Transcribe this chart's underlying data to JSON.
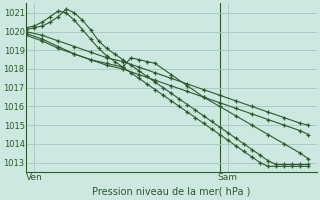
{
  "background_color": "#cce8e0",
  "grid_color": "#aaccc4",
  "line_color": "#2d5a2d",
  "ylim": [
    1012.5,
    1021.5
  ],
  "yticks": [
    1013,
    1014,
    1015,
    1016,
    1017,
    1018,
    1019,
    1020,
    1021
  ],
  "xlabel": "Pression niveau de la mer( hPa )",
  "ven_label": "Ven",
  "sam_label": "Sam",
  "xlim": [
    0,
    36
  ],
  "ven_x": 1,
  "sam_x": 25,
  "sam_line_x": 24,
  "series": [
    {
      "x": [
        0,
        1,
        2,
        3,
        4,
        5,
        6,
        7,
        8,
        9,
        10,
        11,
        12,
        13,
        14,
        15,
        16,
        17,
        18,
        19,
        20,
        21,
        22,
        23,
        24,
        25,
        26,
        27,
        28,
        29,
        30,
        31,
        32,
        33,
        34,
        35
      ],
      "y": [
        1020.1,
        1020.2,
        1020.3,
        1020.5,
        1020.8,
        1021.2,
        1021.0,
        1020.6,
        1020.1,
        1019.5,
        1019.1,
        1018.8,
        1018.5,
        1018.2,
        1017.9,
        1017.6,
        1017.3,
        1017.0,
        1016.7,
        1016.4,
        1016.1,
        1015.8,
        1015.5,
        1015.2,
        1014.9,
        1014.6,
        1014.3,
        1014.0,
        1013.7,
        1013.4,
        1013.1,
        1012.9,
        1012.9,
        1012.9,
        1012.9,
        1012.9
      ]
    },
    {
      "x": [
        0,
        1,
        2,
        3,
        4,
        5,
        6,
        7,
        8,
        9,
        10,
        11,
        12,
        13,
        14,
        15,
        16,
        17,
        18,
        19,
        20,
        21,
        22,
        23,
        24,
        25,
        26,
        27,
        28,
        29,
        30,
        31,
        32,
        33,
        34,
        35
      ],
      "y": [
        1020.2,
        1020.3,
        1020.5,
        1020.8,
        1021.1,
        1021.0,
        1020.6,
        1020.1,
        1019.6,
        1019.1,
        1018.7,
        1018.4,
        1018.1,
        1017.8,
        1017.5,
        1017.2,
        1016.9,
        1016.6,
        1016.3,
        1016.0,
        1015.7,
        1015.4,
        1015.1,
        1014.8,
        1014.5,
        1014.2,
        1013.9,
        1013.6,
        1013.3,
        1013.0,
        1012.8,
        1012.8,
        1012.8,
        1012.8,
        1012.8,
        1012.8
      ]
    },
    {
      "x": [
        0,
        2,
        4,
        6,
        8,
        10,
        12,
        14,
        16,
        18,
        20,
        22,
        24,
        26,
        28,
        30,
        32,
        34,
        35
      ],
      "y": [
        1020.0,
        1019.8,
        1019.5,
        1019.2,
        1018.9,
        1018.6,
        1018.4,
        1018.1,
        1017.8,
        1017.5,
        1017.2,
        1016.9,
        1016.6,
        1016.3,
        1016.0,
        1015.7,
        1015.4,
        1015.1,
        1015.0
      ]
    },
    {
      "x": [
        0,
        2,
        4,
        6,
        8,
        10,
        12,
        13,
        14,
        15,
        16,
        18,
        20,
        22,
        24,
        26,
        28,
        30,
        32,
        34,
        35
      ],
      "y": [
        1019.9,
        1019.6,
        1019.2,
        1018.8,
        1018.5,
        1018.3,
        1018.1,
        1018.6,
        1018.5,
        1018.4,
        1018.3,
        1017.7,
        1017.1,
        1016.5,
        1016.0,
        1015.5,
        1015.0,
        1014.5,
        1014.0,
        1013.5,
        1013.2
      ]
    },
    {
      "x": [
        0,
        2,
        4,
        6,
        8,
        10,
        12,
        14,
        16,
        18,
        20,
        22,
        24,
        26,
        28,
        30,
        32,
        34,
        35
      ],
      "y": [
        1019.8,
        1019.5,
        1019.1,
        1018.8,
        1018.5,
        1018.2,
        1018.0,
        1017.7,
        1017.4,
        1017.1,
        1016.8,
        1016.5,
        1016.2,
        1015.9,
        1015.6,
        1015.3,
        1015.0,
        1014.7,
        1014.5
      ]
    }
  ]
}
